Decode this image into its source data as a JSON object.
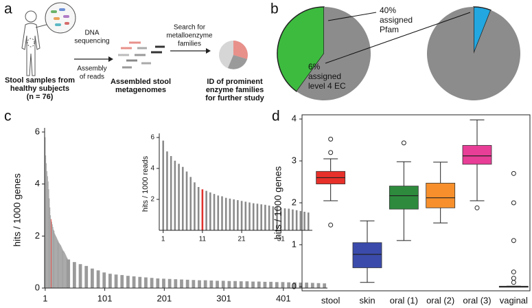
{
  "panels": [
    "a",
    "b",
    "c",
    "d"
  ],
  "diagram": {
    "subjects": [
      "Stool samples from",
      "healthy subjects",
      "(n = 76)"
    ],
    "sequencing": [
      "DNA",
      "sequencing"
    ],
    "assembly": [
      "Assembly",
      "of reads"
    ],
    "metagenomes": [
      "Assembled stool",
      "metagenomes"
    ],
    "search": [
      "Search for",
      "metalloenzyme",
      "families"
    ],
    "result": [
      "ID of prominent",
      "enzyme families",
      "for further study"
    ]
  },
  "chart_data": [
    {
      "type": "pie",
      "values": [
        40,
        60
      ],
      "value_labels": [
        "40%",
        null
      ],
      "annotation": [
        "assigned",
        "Pfam"
      ],
      "colors": [
        "#3dbb3f",
        "#8c8c8c"
      ],
      "direction": "counterclockwise"
    },
    {
      "type": "pie",
      "values": [
        6,
        94
      ],
      "value_labels": [
        "6%",
        null
      ],
      "annotation": [
        "assigned",
        "level 4 EC"
      ],
      "colors": [
        "#22a7e0",
        "#8c8c8c"
      ],
      "direction": "clockwise"
    },
    {
      "type": "bar",
      "ylabel": "hits / 1000 genes",
      "xlim": [
        0,
        475
      ],
      "ylim": [
        0,
        6
      ],
      "xticks": [
        1,
        101,
        201,
        301,
        401
      ],
      "yticks": [
        0,
        2,
        4,
        6
      ],
      "x": [
        1,
        2,
        3,
        4,
        5,
        6,
        7,
        8,
        9,
        10,
        11,
        12,
        13,
        14,
        15,
        16,
        17,
        18,
        19,
        20,
        21,
        22,
        23,
        24,
        25,
        26,
        27,
        28,
        29,
        30,
        31,
        32,
        33,
        34,
        35,
        36,
        37,
        38,
        40,
        50,
        60,
        70,
        80,
        90,
        100,
        110,
        120,
        130,
        140,
        150,
        160,
        170,
        180,
        190,
        200,
        210,
        220,
        230,
        240,
        250,
        260,
        270,
        280,
        290,
        300,
        310,
        320,
        330,
        340,
        350,
        360,
        370,
        380,
        390,
        400,
        410,
        420,
        430,
        440,
        450,
        460,
        470
      ],
      "values": [
        5.8,
        5.1,
        4.8,
        4.5,
        4.3,
        4.1,
        3.8,
        3.45,
        3.1,
        2.8,
        2.65,
        2.55,
        2.45,
        2.35,
        2.25,
        2.2,
        2.1,
        2.05,
        2.0,
        1.95,
        1.9,
        1.85,
        1.8,
        1.75,
        1.72,
        1.68,
        1.65,
        1.6,
        1.55,
        1.5,
        1.45,
        1.42,
        1.4,
        1.35,
        1.3,
        1.25,
        1.2,
        1.15,
        1.1,
        1.0,
        0.92,
        0.85,
        0.75,
        0.68,
        0.6,
        0.55,
        0.52,
        0.5,
        0.47,
        0.45,
        0.43,
        0.41,
        0.39,
        0.37,
        0.36,
        0.35,
        0.34,
        0.33,
        0.32,
        0.31,
        0.3,
        0.3,
        0.29,
        0.28,
        0.28,
        0.27,
        0.27,
        0.26,
        0.26,
        0.25,
        0.25,
        0.24,
        0.24,
        0.23,
        0.23,
        0.22,
        0.22,
        0.21,
        0.21,
        0.2,
        0.19,
        0.18
      ],
      "color": "#9a9a9a",
      "highlight": {
        "x": 11,
        "color": "#e0312b"
      }
    },
    {
      "type": "bar",
      "ylabel": "hits / 1000 reads",
      "xlim": [
        0,
        39
      ],
      "ylim": [
        0,
        6
      ],
      "xticks": [
        1,
        11,
        21,
        31
      ],
      "yticks": [
        2,
        4,
        6
      ],
      "x": [
        1,
        2,
        3,
        4,
        5,
        6,
        7,
        8,
        9,
        10,
        11,
        12,
        13,
        14,
        15,
        16,
        17,
        18,
        19,
        20,
        21,
        22,
        23,
        24,
        25,
        26,
        27,
        28,
        29,
        30,
        31,
        32,
        33,
        34,
        35,
        36,
        37,
        38
      ],
      "values": [
        5.8,
        5.1,
        4.8,
        4.5,
        4.3,
        4.1,
        3.8,
        3.45,
        3.1,
        2.8,
        2.65,
        2.55,
        2.45,
        2.35,
        2.25,
        2.2,
        2.1,
        2.05,
        2.0,
        1.95,
        1.9,
        1.85,
        1.8,
        1.75,
        1.72,
        1.68,
        1.65,
        1.6,
        1.55,
        1.5,
        1.45,
        1.42,
        1.4,
        1.35,
        1.3,
        1.25,
        1.2,
        1.15
      ],
      "color": "#8a8a8a",
      "highlight": {
        "x": 11,
        "color": "#e0312b"
      }
    },
    {
      "type": "box",
      "ylabel": "hits / 1000 genes",
      "ylim": [
        -0.1,
        4.1
      ],
      "yticks": [
        0,
        1,
        2,
        3,
        4
      ],
      "categories": [
        "stool",
        "skin",
        "oral (1)",
        "oral (2)",
        "oral (3)",
        "vaginal"
      ],
      "low": [
        2.05,
        0.1,
        1.1,
        1.52,
        2.05,
        0
      ],
      "q1": [
        2.45,
        0.45,
        1.85,
        1.88,
        2.92,
        0
      ],
      "median": [
        2.6,
        0.77,
        2.17,
        2.12,
        3.12,
        0
      ],
      "q3": [
        2.75,
        1.05,
        2.4,
        2.47,
        3.37,
        0.01
      ],
      "high": [
        3.05,
        1.57,
        2.98,
        2.97,
        3.98,
        0.01
      ],
      "outliers": [
        [
          3.52,
          3.2,
          1.47
        ],
        [],
        [
          3.43
        ],
        [],
        [
          1.88
        ],
        [
          2.7,
          2.0,
          1.1,
          0.35,
          0.2,
          0.1
        ]
      ],
      "colors": [
        "#e8302a",
        "#3a4bab",
        "#2e8b3e",
        "#f7902c",
        "#e83e97",
        "#2a8c9c"
      ]
    }
  ]
}
